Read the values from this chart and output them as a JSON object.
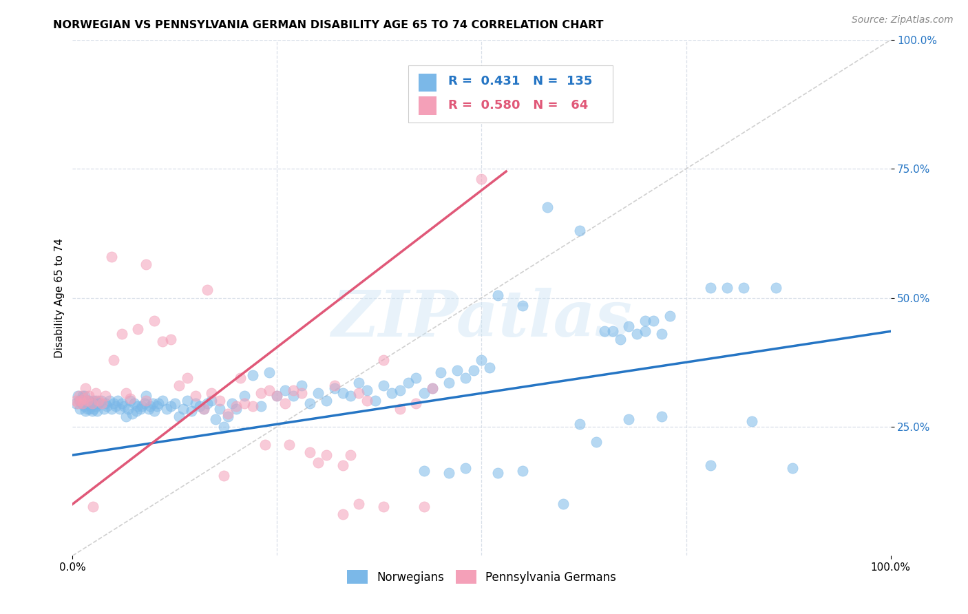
{
  "title": "NORWEGIAN VS PENNSYLVANIA GERMAN DISABILITY AGE 65 TO 74 CORRELATION CHART",
  "source": "Source: ZipAtlas.com",
  "ylabel": "Disability Age 65 to 74",
  "legend_labels": [
    "Norwegians",
    "Pennsylvania Germans"
  ],
  "blue_color": "#7bb8e8",
  "pink_color": "#f4a0b8",
  "blue_line_color": "#2575c4",
  "pink_line_color": "#e05878",
  "diagonal_color": "#c8c8c8",
  "watermark": "ZIPatlas",
  "xlim": [
    0,
    1
  ],
  "ylim": [
    0,
    1
  ],
  "blue_trend_x": [
    0,
    1.0
  ],
  "blue_trend_y": [
    0.195,
    0.435
  ],
  "pink_trend_x": [
    0.0,
    0.53
  ],
  "pink_trend_y": [
    0.1,
    0.745
  ],
  "blue_points": [
    [
      0.004,
      0.295
    ],
    [
      0.006,
      0.31
    ],
    [
      0.008,
      0.3
    ],
    [
      0.009,
      0.285
    ],
    [
      0.01,
      0.3
    ],
    [
      0.011,
      0.295
    ],
    [
      0.012,
      0.31
    ],
    [
      0.013,
      0.3
    ],
    [
      0.014,
      0.29
    ],
    [
      0.015,
      0.31
    ],
    [
      0.016,
      0.28
    ],
    [
      0.017,
      0.3
    ],
    [
      0.018,
      0.285
    ],
    [
      0.019,
      0.295
    ],
    [
      0.02,
      0.3
    ],
    [
      0.021,
      0.285
    ],
    [
      0.022,
      0.29
    ],
    [
      0.023,
      0.295
    ],
    [
      0.024,
      0.28
    ],
    [
      0.025,
      0.3
    ],
    [
      0.026,
      0.285
    ],
    [
      0.027,
      0.295
    ],
    [
      0.028,
      0.3
    ],
    [
      0.029,
      0.29
    ],
    [
      0.03,
      0.28
    ],
    [
      0.032,
      0.295
    ],
    [
      0.035,
      0.3
    ],
    [
      0.038,
      0.285
    ],
    [
      0.04,
      0.295
    ],
    [
      0.042,
      0.29
    ],
    [
      0.045,
      0.3
    ],
    [
      0.048,
      0.285
    ],
    [
      0.05,
      0.295
    ],
    [
      0.053,
      0.29
    ],
    [
      0.055,
      0.3
    ],
    [
      0.058,
      0.285
    ],
    [
      0.06,
      0.295
    ],
    [
      0.063,
      0.29
    ],
    [
      0.065,
      0.27
    ],
    [
      0.068,
      0.285
    ],
    [
      0.07,
      0.3
    ],
    [
      0.073,
      0.275
    ],
    [
      0.075,
      0.295
    ],
    [
      0.078,
      0.28
    ],
    [
      0.08,
      0.29
    ],
    [
      0.083,
      0.285
    ],
    [
      0.085,
      0.29
    ],
    [
      0.088,
      0.295
    ],
    [
      0.09,
      0.31
    ],
    [
      0.093,
      0.285
    ],
    [
      0.095,
      0.29
    ],
    [
      0.098,
      0.295
    ],
    [
      0.1,
      0.28
    ],
    [
      0.103,
      0.29
    ],
    [
      0.105,
      0.295
    ],
    [
      0.11,
      0.3
    ],
    [
      0.115,
      0.285
    ],
    [
      0.12,
      0.29
    ],
    [
      0.125,
      0.295
    ],
    [
      0.13,
      0.27
    ],
    [
      0.135,
      0.285
    ],
    [
      0.14,
      0.3
    ],
    [
      0.145,
      0.28
    ],
    [
      0.15,
      0.295
    ],
    [
      0.155,
      0.29
    ],
    [
      0.16,
      0.285
    ],
    [
      0.165,
      0.295
    ],
    [
      0.17,
      0.3
    ],
    [
      0.175,
      0.265
    ],
    [
      0.18,
      0.285
    ],
    [
      0.185,
      0.25
    ],
    [
      0.19,
      0.27
    ],
    [
      0.195,
      0.295
    ],
    [
      0.2,
      0.285
    ],
    [
      0.21,
      0.31
    ],
    [
      0.22,
      0.35
    ],
    [
      0.23,
      0.29
    ],
    [
      0.24,
      0.355
    ],
    [
      0.25,
      0.31
    ],
    [
      0.26,
      0.32
    ],
    [
      0.27,
      0.31
    ],
    [
      0.28,
      0.33
    ],
    [
      0.29,
      0.295
    ],
    [
      0.3,
      0.315
    ],
    [
      0.31,
      0.3
    ],
    [
      0.32,
      0.325
    ],
    [
      0.33,
      0.315
    ],
    [
      0.34,
      0.31
    ],
    [
      0.35,
      0.335
    ],
    [
      0.36,
      0.32
    ],
    [
      0.37,
      0.3
    ],
    [
      0.38,
      0.33
    ],
    [
      0.39,
      0.315
    ],
    [
      0.4,
      0.32
    ],
    [
      0.41,
      0.335
    ],
    [
      0.42,
      0.345
    ],
    [
      0.43,
      0.315
    ],
    [
      0.44,
      0.325
    ],
    [
      0.45,
      0.355
    ],
    [
      0.46,
      0.335
    ],
    [
      0.47,
      0.36
    ],
    [
      0.48,
      0.345
    ],
    [
      0.49,
      0.36
    ],
    [
      0.5,
      0.38
    ],
    [
      0.51,
      0.365
    ],
    [
      0.52,
      0.505
    ],
    [
      0.55,
      0.485
    ],
    [
      0.58,
      0.675
    ],
    [
      0.62,
      0.63
    ],
    [
      0.65,
      0.435
    ],
    [
      0.66,
      0.435
    ],
    [
      0.67,
      0.42
    ],
    [
      0.68,
      0.445
    ],
    [
      0.69,
      0.43
    ],
    [
      0.7,
      0.455
    ],
    [
      0.72,
      0.43
    ],
    [
      0.73,
      0.465
    ],
    [
      0.78,
      0.52
    ],
    [
      0.8,
      0.52
    ],
    [
      0.82,
      0.52
    ],
    [
      0.86,
      0.52
    ],
    [
      0.7,
      0.435
    ],
    [
      0.71,
      0.455
    ],
    [
      0.62,
      0.255
    ],
    [
      0.64,
      0.22
    ],
    [
      0.68,
      0.265
    ],
    [
      0.72,
      0.27
    ],
    [
      0.78,
      0.175
    ],
    [
      0.83,
      0.26
    ],
    [
      0.52,
      0.16
    ],
    [
      0.55,
      0.165
    ],
    [
      0.6,
      0.1
    ],
    [
      0.46,
      0.16
    ],
    [
      0.43,
      0.165
    ],
    [
      0.48,
      0.17
    ],
    [
      0.88,
      0.17
    ]
  ],
  "pink_points": [
    [
      0.004,
      0.3
    ],
    [
      0.006,
      0.295
    ],
    [
      0.008,
      0.31
    ],
    [
      0.01,
      0.3
    ],
    [
      0.012,
      0.295
    ],
    [
      0.014,
      0.305
    ],
    [
      0.016,
      0.325
    ],
    [
      0.018,
      0.3
    ],
    [
      0.02,
      0.31
    ],
    [
      0.024,
      0.295
    ],
    [
      0.028,
      0.315
    ],
    [
      0.032,
      0.3
    ],
    [
      0.036,
      0.295
    ],
    [
      0.04,
      0.31
    ],
    [
      0.05,
      0.38
    ],
    [
      0.06,
      0.43
    ],
    [
      0.065,
      0.315
    ],
    [
      0.07,
      0.305
    ],
    [
      0.08,
      0.44
    ],
    [
      0.09,
      0.3
    ],
    [
      0.1,
      0.455
    ],
    [
      0.11,
      0.415
    ],
    [
      0.12,
      0.42
    ],
    [
      0.13,
      0.33
    ],
    [
      0.14,
      0.345
    ],
    [
      0.15,
      0.31
    ],
    [
      0.16,
      0.285
    ],
    [
      0.17,
      0.315
    ],
    [
      0.18,
      0.3
    ],
    [
      0.19,
      0.275
    ],
    [
      0.2,
      0.29
    ],
    [
      0.21,
      0.295
    ],
    [
      0.22,
      0.29
    ],
    [
      0.23,
      0.315
    ],
    [
      0.24,
      0.32
    ],
    [
      0.25,
      0.31
    ],
    [
      0.26,
      0.295
    ],
    [
      0.27,
      0.32
    ],
    [
      0.28,
      0.315
    ],
    [
      0.29,
      0.2
    ],
    [
      0.3,
      0.18
    ],
    [
      0.31,
      0.195
    ],
    [
      0.32,
      0.33
    ],
    [
      0.33,
      0.175
    ],
    [
      0.34,
      0.195
    ],
    [
      0.35,
      0.315
    ],
    [
      0.36,
      0.3
    ],
    [
      0.38,
      0.38
    ],
    [
      0.4,
      0.285
    ],
    [
      0.42,
      0.295
    ],
    [
      0.44,
      0.325
    ],
    [
      0.048,
      0.58
    ],
    [
      0.09,
      0.565
    ],
    [
      0.165,
      0.515
    ],
    [
      0.185,
      0.155
    ],
    [
      0.205,
      0.345
    ],
    [
      0.235,
      0.215
    ],
    [
      0.265,
      0.215
    ],
    [
      0.025,
      0.095
    ],
    [
      0.33,
      0.08
    ],
    [
      0.35,
      0.1
    ],
    [
      0.38,
      0.095
    ],
    [
      0.43,
      0.095
    ],
    [
      0.5,
      0.73
    ]
  ],
  "grid_color": "#d8dfe8",
  "grid_style": "--",
  "ytick_color": "#2575c4",
  "title_fontsize": 11.5,
  "source_fontsize": 10,
  "axis_fontsize": 11,
  "dot_size": 120,
  "dot_alpha": 0.55
}
